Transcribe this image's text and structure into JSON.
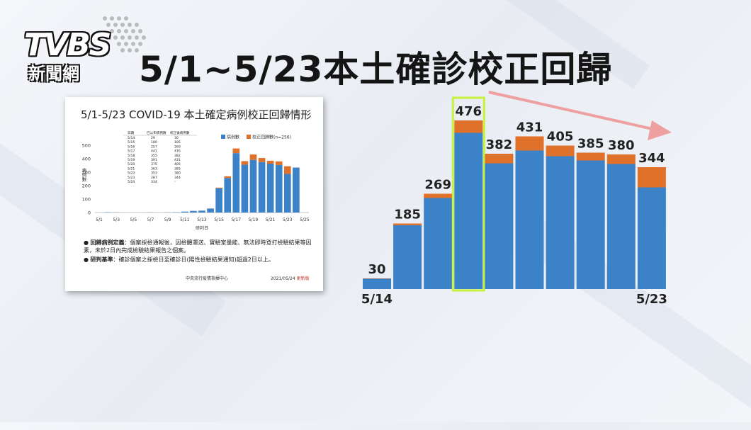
{
  "logo": {
    "word": "TVBS",
    "sub": "新聞網"
  },
  "title": "5/1~5/23本土確診校正回歸",
  "colors": {
    "cases": "#3c82c8",
    "backlog": "#e0712a",
    "highlight": "#c7f23a",
    "arrow": "#eea0a0"
  },
  "doc": {
    "title": "5/1-5/23 COVID-19 本土確定病例校正回歸情形",
    "table_headers": [
      "日期",
      "已公布病例數",
      "校正後病例數"
    ],
    "table_rows": [
      [
        "5/14",
        "29",
        "30"
      ],
      [
        "5/15",
        "180",
        "185"
      ],
      [
        "5/16",
        "257",
        "269"
      ],
      [
        "5/17",
        "441",
        "476"
      ],
      [
        "5/18",
        "355",
        "382"
      ],
      [
        "5/19",
        "391",
        "431"
      ],
      [
        "5/20",
        "375",
        "405"
      ],
      [
        "5/21",
        "363",
        "385"
      ],
      [
        "5/22",
        "353",
        "380"
      ],
      [
        "5/23",
        "287",
        "344"
      ],
      [
        "5/24",
        "334",
        "-"
      ]
    ],
    "notes": [
      {
        "bold": "回歸病例定義",
        "text": "：個案採檢通報後，因檢體運送、實驗室量能、無法即時登打檢驗結果等因素，未於2日內完成檢驗結果報告之個案。"
      },
      {
        "bold": "研判基準",
        "text": "：確診個案之採檢日至確診日(陽性檢驗結果通知)超過2日以上。"
      }
    ],
    "org": "中央流行疫情指揮中心",
    "date": "2021/05/24",
    "update_label": "更新版"
  },
  "chart_data": [
    {
      "type": "bar",
      "title": "5/1-5/23 COVID-19 本土確定病例校正回歸情形",
      "xlabel": "研判日",
      "ylabel": "病例數",
      "ylim": [
        0,
        500
      ],
      "yticks": [
        0,
        100,
        200,
        300,
        400,
        500
      ],
      "categories": [
        "5/1",
        "5/2",
        "5/3",
        "5/4",
        "5/5",
        "5/6",
        "5/7",
        "5/8",
        "5/9",
        "5/10",
        "5/11",
        "5/12",
        "5/13",
        "5/14",
        "5/15",
        "5/16",
        "5/17",
        "5/18",
        "5/19",
        "5/20",
        "5/21",
        "5/22",
        "5/23",
        "5/24",
        "5/25"
      ],
      "tick_labels": [
        "5/1",
        "5/3",
        "5/5",
        "5/7",
        "5/9",
        "5/11",
        "5/13",
        "5/15",
        "5/17",
        "5/19",
        "5/21",
        "5/23",
        "5/25"
      ],
      "series": [
        {
          "name": "病例數",
          "values": [
            0,
            2,
            1,
            0,
            0,
            0,
            1,
            0,
            1,
            2,
            7,
            12,
            14,
            29,
            180,
            257,
            441,
            355,
            391,
            375,
            363,
            353,
            287,
            334,
            0
          ]
        },
        {
          "name": "校正回歸數(n=256)",
          "values": [
            0,
            0,
            0,
            0,
            0,
            0,
            0,
            0,
            0,
            0,
            0,
            0,
            0,
            1,
            5,
            12,
            35,
            27,
            40,
            30,
            22,
            27,
            57,
            0,
            0
          ]
        }
      ],
      "legend": "top-right"
    },
    {
      "type": "bar",
      "stacked": true,
      "categories": [
        "5/14",
        "5/15",
        "5/16",
        "5/17",
        "5/18",
        "5/19",
        "5/20",
        "5/21",
        "5/22",
        "5/23"
      ],
      "axis_labels": [
        "5/14",
        "5/23"
      ],
      "series": [
        {
          "values": [
            29,
            180,
            257,
            441,
            355,
            391,
            375,
            363,
            353,
            287
          ]
        },
        {
          "values": [
            1,
            5,
            12,
            35,
            27,
            40,
            30,
            22,
            27,
            57
          ]
        }
      ],
      "totals": [
        "30",
        "185",
        "269",
        "476",
        "382",
        "431",
        "405",
        "385",
        "380",
        "344"
      ],
      "highlighted": "5/17",
      "trend": "downward arrow from 5/17 to 5/23"
    }
  ]
}
